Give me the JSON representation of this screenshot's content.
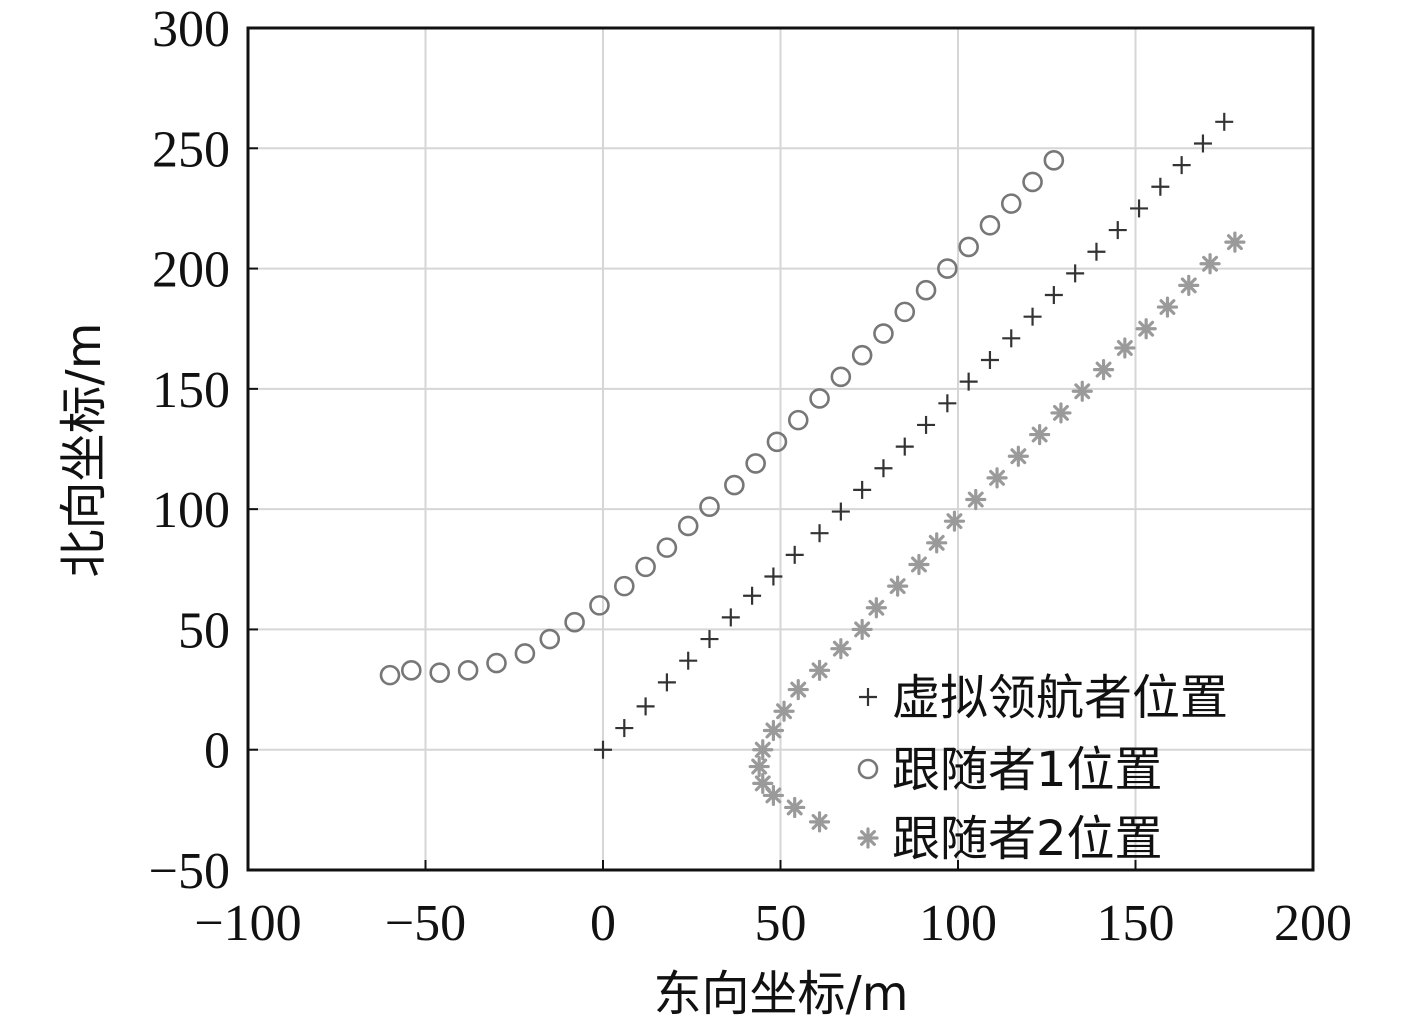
{
  "chart_data": {
    "type": "scatter",
    "title": "",
    "xlabel": "东向坐标/m",
    "ylabel": "北向坐标/m",
    "xlim": [
      -100,
      200
    ],
    "ylim": [
      -50,
      300
    ],
    "xticks": [
      "−100",
      "−50",
      "0",
      "50",
      "100",
      "150",
      "200"
    ],
    "xtick_values": [
      -100,
      -50,
      0,
      50,
      100,
      150,
      200
    ],
    "yticks": [
      "−50",
      "0",
      "50",
      "100",
      "150",
      "200",
      "250",
      "300"
    ],
    "ytick_values": [
      -50,
      0,
      50,
      100,
      150,
      200,
      250,
      300
    ],
    "grid": true,
    "legend_position": "bottom-right",
    "series": [
      {
        "name": "虚拟领航者位置",
        "marker": "plus",
        "color": "#333333",
        "points": [
          [
            0,
            0
          ],
          [
            6,
            9
          ],
          [
            12,
            18
          ],
          [
            18,
            28
          ],
          [
            24,
            37
          ],
          [
            30,
            46
          ],
          [
            36,
            55
          ],
          [
            42,
            64
          ],
          [
            48,
            72
          ],
          [
            54,
            81
          ],
          [
            61,
            90
          ],
          [
            67,
            99
          ],
          [
            73,
            108
          ],
          [
            79,
            117
          ],
          [
            85,
            126
          ],
          [
            91,
            135
          ],
          [
            97,
            144
          ],
          [
            103,
            153
          ],
          [
            109,
            162
          ],
          [
            115,
            171
          ],
          [
            121,
            180
          ],
          [
            127,
            189
          ],
          [
            133,
            198
          ],
          [
            139,
            207
          ],
          [
            145,
            216
          ],
          [
            151,
            225
          ],
          [
            157,
            234
          ],
          [
            163,
            243
          ],
          [
            169,
            252
          ],
          [
            175,
            261
          ]
        ]
      },
      {
        "name": "跟随者1位置",
        "marker": "circle",
        "color": "#777777",
        "points": [
          [
            -60,
            31
          ],
          [
            -54,
            33
          ],
          [
            -46,
            32
          ],
          [
            -38,
            33
          ],
          [
            -30,
            36
          ],
          [
            -22,
            40
          ],
          [
            -15,
            46
          ],
          [
            -8,
            53
          ],
          [
            -1,
            60
          ],
          [
            6,
            68
          ],
          [
            12,
            76
          ],
          [
            18,
            84
          ],
          [
            24,
            93
          ],
          [
            30,
            101
          ],
          [
            37,
            110
          ],
          [
            43,
            119
          ],
          [
            49,
            128
          ],
          [
            55,
            137
          ],
          [
            61,
            146
          ],
          [
            67,
            155
          ],
          [
            73,
            164
          ],
          [
            79,
            173
          ],
          [
            85,
            182
          ],
          [
            91,
            191
          ],
          [
            97,
            200
          ],
          [
            103,
            209
          ],
          [
            109,
            218
          ],
          [
            115,
            227
          ],
          [
            121,
            236
          ],
          [
            127,
            245
          ]
        ]
      },
      {
        "name": "跟随者2位置",
        "marker": "star",
        "color": "#9a9a9a",
        "points": [
          [
            61,
            -30
          ],
          [
            54,
            -24
          ],
          [
            48,
            -19
          ],
          [
            45,
            -14
          ],
          [
            44,
            -7
          ],
          [
            45,
            0
          ],
          [
            48,
            8
          ],
          [
            51,
            16
          ],
          [
            55,
            25
          ],
          [
            61,
            33
          ],
          [
            67,
            42
          ],
          [
            73,
            50
          ],
          [
            77,
            59
          ],
          [
            83,
            68
          ],
          [
            89,
            77
          ],
          [
            94,
            86
          ],
          [
            99,
            95
          ],
          [
            105,
            104
          ],
          [
            111,
            113
          ],
          [
            117,
            122
          ],
          [
            123,
            131
          ],
          [
            129,
            140
          ],
          [
            135,
            149
          ],
          [
            141,
            158
          ],
          [
            147,
            167
          ],
          [
            153,
            175
          ],
          [
            159,
            184
          ],
          [
            165,
            193
          ],
          [
            171,
            202
          ],
          [
            178,
            211
          ]
        ]
      }
    ]
  }
}
